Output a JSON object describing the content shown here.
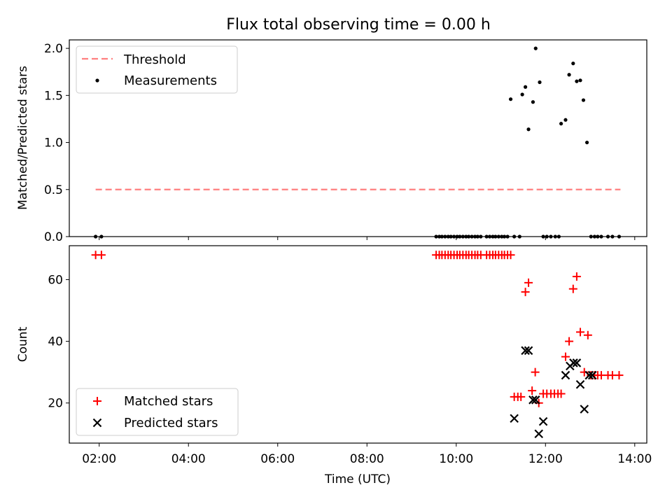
{
  "figure": {
    "title": "Flux total observing time = 0.00 h",
    "xlabel": "Time (UTC)",
    "xtick_labels": [
      "02:00",
      "04:00",
      "06:00",
      "08:00",
      "10:00",
      "12:00",
      "14:00"
    ],
    "colors": {
      "threshold": "#ff7f7f",
      "measurement": "#000000",
      "matched": "#ff0000",
      "predicted": "#000000"
    }
  },
  "chart_data": [
    {
      "type": "scatter",
      "ylabel": "Matched/Predicted stars",
      "xunit": "hours UTC",
      "xlim": [
        1.33,
        14.27
      ],
      "ylim": [
        0,
        2.09
      ],
      "ytick_labels": [
        "0.0",
        "0.5",
        "1.0",
        "1.5",
        "2.0"
      ],
      "legend": {
        "placement": "upper left",
        "entries": [
          "Threshold",
          "Measurements"
        ]
      },
      "series": [
        {
          "name": "Threshold",
          "kind": "dashed-line",
          "x": [
            1.92,
            13.68
          ],
          "y": [
            0.5,
            0.5
          ]
        },
        {
          "name": "Measurements",
          "kind": "dots",
          "x": [
            1.92,
            2.05,
            9.55,
            9.62,
            9.68,
            9.75,
            9.82,
            9.88,
            9.95,
            10.02,
            10.08,
            10.15,
            10.22,
            10.28,
            10.35,
            10.42,
            10.48,
            10.55,
            10.68,
            10.75,
            10.82,
            10.88,
            10.95,
            11.02,
            11.08,
            11.15,
            11.22,
            11.3,
            11.42,
            11.48,
            11.55,
            11.62,
            11.72,
            11.78,
            11.87,
            11.95,
            12.03,
            12.12,
            12.22,
            12.3,
            12.35,
            12.45,
            12.53,
            12.62,
            12.7,
            12.78,
            12.85,
            12.93,
            13.02,
            13.1,
            13.17,
            13.25,
            13.4,
            13.5,
            13.65
          ],
          "y": [
            0.0,
            0.0,
            0.0,
            0.0,
            0.0,
            0.0,
            0.0,
            0.0,
            0.0,
            0.0,
            0.0,
            0.0,
            0.0,
            0.0,
            0.0,
            0.0,
            0.0,
            0.0,
            0.0,
            0.0,
            0.0,
            0.0,
            0.0,
            0.0,
            0.0,
            0.0,
            1.46,
            0.0,
            0.0,
            1.51,
            1.59,
            1.14,
            1.43,
            2.0,
            1.64,
            0.0,
            0.0,
            0.0,
            0.0,
            0.0,
            1.2,
            1.24,
            1.72,
            1.84,
            1.65,
            1.66,
            1.45,
            1.0,
            0.0,
            0.0,
            0.0,
            0.0,
            0.0,
            0.0,
            0.0
          ]
        }
      ]
    },
    {
      "type": "scatter",
      "ylabel": "Count",
      "xunit": "hours UTC",
      "xlim": [
        1.33,
        14.27
      ],
      "ylim": [
        7,
        71
      ],
      "ytick_labels": [
        "20",
        "40",
        "60"
      ],
      "legend": {
        "placement": "lower left",
        "entries": [
          "Matched stars",
          "Predicted stars"
        ]
      },
      "series": [
        {
          "name": "Matched stars",
          "marker": "plus",
          "x": [
            1.92,
            2.05,
            9.55,
            9.62,
            9.68,
            9.75,
            9.82,
            9.88,
            9.95,
            10.02,
            10.08,
            10.15,
            10.22,
            10.28,
            10.35,
            10.42,
            10.48,
            10.55,
            10.68,
            10.75,
            10.82,
            10.88,
            10.95,
            11.02,
            11.08,
            11.15,
            11.22,
            11.3,
            11.38,
            11.45,
            11.55,
            11.62,
            11.7,
            11.77,
            11.85,
            11.95,
            12.03,
            12.12,
            12.2,
            12.28,
            12.35,
            12.45,
            12.53,
            12.62,
            12.7,
            12.78,
            12.87,
            12.95,
            13.02,
            13.1,
            13.17,
            13.25,
            13.4,
            13.5,
            13.65
          ],
          "y": [
            68,
            68,
            68,
            68,
            68,
            68,
            68,
            68,
            68,
            68,
            68,
            68,
            68,
            68,
            68,
            68,
            68,
            68,
            68,
            68,
            68,
            68,
            68,
            68,
            68,
            68,
            68,
            22,
            22,
            22,
            56,
            59,
            24,
            30,
            20,
            23,
            23,
            23,
            23,
            23,
            23,
            35,
            40,
            57,
            61,
            43,
            30,
            42,
            29,
            29,
            29,
            29,
            29,
            29,
            29
          ]
        },
        {
          "name": "Predicted stars",
          "marker": "x",
          "x": [
            11.3,
            11.55,
            11.62,
            11.72,
            11.78,
            11.85,
            11.95,
            12.45,
            12.55,
            12.63,
            12.7,
            12.78,
            12.87,
            12.98,
            13.05
          ],
          "y": [
            15,
            37,
            37,
            21,
            21,
            10,
            14,
            29,
            32,
            33,
            33,
            26,
            18,
            29,
            29
          ]
        }
      ]
    }
  ]
}
